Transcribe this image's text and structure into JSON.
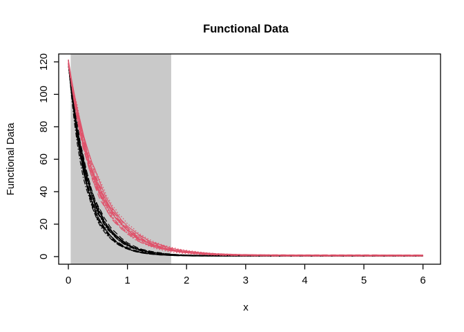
{
  "chart_data": {
    "type": "line",
    "title": "Functional Data",
    "xlabel": "x",
    "ylabel": "Functional Data",
    "xlim": [
      0,
      6
    ],
    "ylim": [
      0,
      120
    ],
    "xticks": [
      0,
      1,
      2,
      3,
      4,
      5,
      6
    ],
    "yticks": [
      0,
      20,
      40,
      60,
      80,
      100,
      120
    ],
    "grid": false,
    "legend": false,
    "frame_box": true,
    "background_color": "#ffffff",
    "box_color": "#000000",
    "shaded_region": {
      "x_start": 0.04,
      "x_end": 1.74,
      "color": "#c9c9c9",
      "note": "vertical band spanning the full y-range of the plot box"
    },
    "line_style_cycle": [
      "solid",
      "dashed",
      "dotted",
      "dotdash",
      "longdash"
    ],
    "series_groups": [
      {
        "name": "fast-decay-black-curves",
        "color": "#000000",
        "curve_count": 14,
        "start_value": 119,
        "decay_rate": 3.0,
        "baseline": 0.5,
        "rate_jitter_rel": 0.13,
        "noise_rel": 0.09,
        "x_end": 6,
        "mean_curve": {
          "x": [
            0,
            0.25,
            0.5,
            0.75,
            1.0,
            1.25,
            1.5,
            2.0,
            3.0,
            6.0
          ],
          "y": [
            119.5,
            56.7,
            27.0,
            13.0,
            6.4,
            3.3,
            1.8,
            0.8,
            0.5,
            0.5
          ]
        }
      },
      {
        "name": "slow-decay-pink-curves",
        "color": "#df536b",
        "curve_count": 14,
        "start_value": 119,
        "decay_rate": 2.0,
        "baseline": 0.7,
        "rate_jitter_rel": 0.13,
        "noise_rel": 0.09,
        "x_end": 6,
        "mean_curve": {
          "x": [
            0,
            0.25,
            0.5,
            0.75,
            1.0,
            1.25,
            1.5,
            2.0,
            2.5,
            3.0,
            6.0
          ],
          "y": [
            119.7,
            72.9,
            44.5,
            27.2,
            16.8,
            10.5,
            6.6,
            2.9,
            1.5,
            1.0,
            0.7
          ]
        }
      }
    ]
  }
}
